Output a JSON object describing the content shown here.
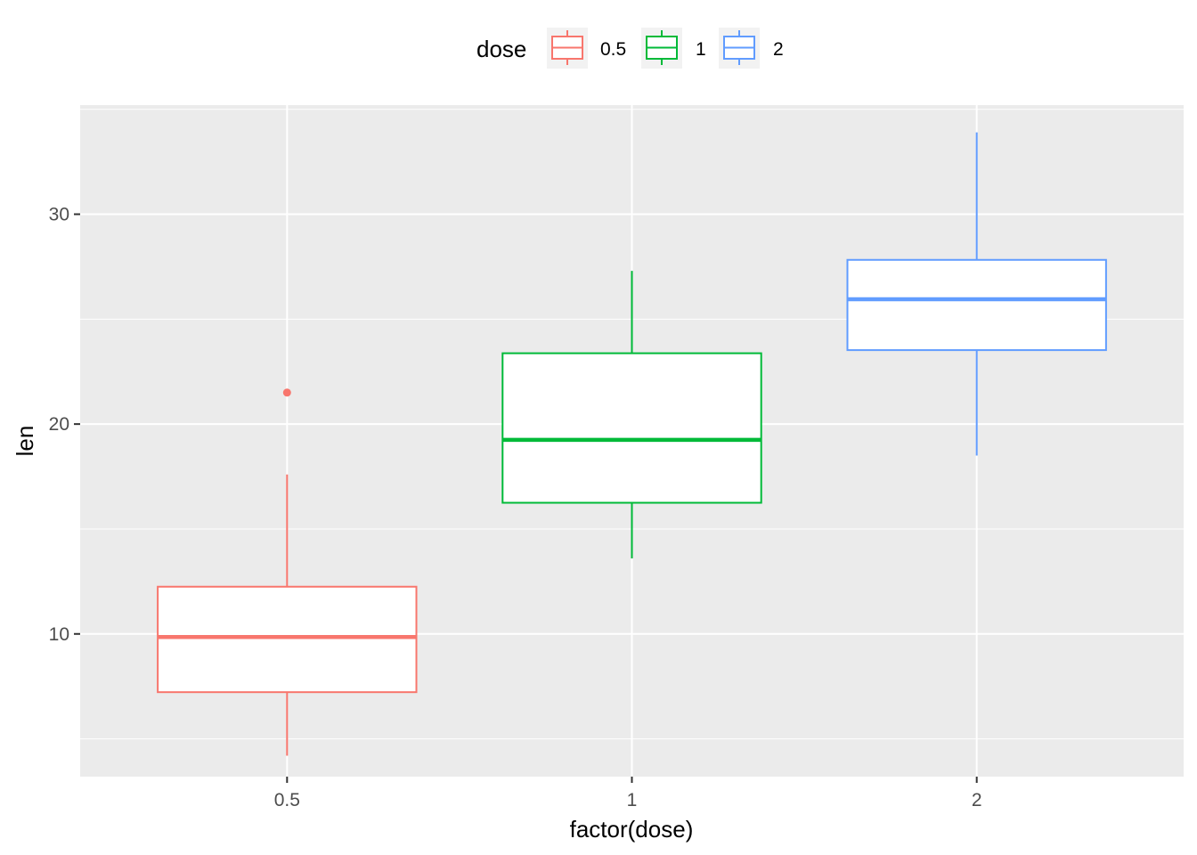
{
  "chart_data": {
    "type": "boxplot",
    "xlabel": "factor(dose)",
    "ylabel": "len",
    "categories": [
      "0.5",
      "1",
      "2"
    ],
    "ylim": [
      3.2,
      35.2
    ],
    "y_ticks": [
      10,
      20,
      30
    ],
    "y_tick_labels": [
      "10",
      "20",
      "30"
    ],
    "grid": true,
    "legend": {
      "title": "dose",
      "position": "top",
      "entries": [
        "0.5",
        "1",
        "2"
      ]
    },
    "series": [
      {
        "name": "0.5",
        "color": "#F8766D",
        "whisker_low": 4.2,
        "q1": 7.225,
        "median": 9.85,
        "q3": 12.25,
        "whisker_high": 17.6,
        "outliers": [
          21.5
        ]
      },
      {
        "name": "1",
        "color": "#00BA38",
        "whisker_low": 13.6,
        "q1": 16.25,
        "median": 19.25,
        "q3": 23.375,
        "whisker_high": 27.3,
        "outliers": []
      },
      {
        "name": "2",
        "color": "#619CFF",
        "whisker_low": 18.5,
        "q1": 23.525,
        "median": 25.95,
        "q3": 27.825,
        "whisker_high": 33.9,
        "outliers": []
      }
    ]
  }
}
